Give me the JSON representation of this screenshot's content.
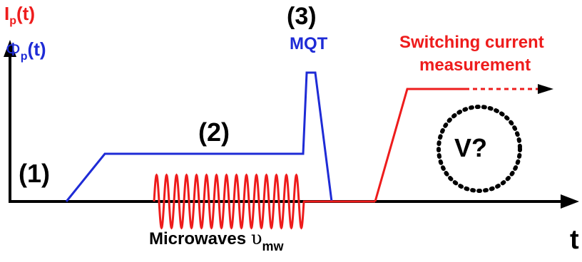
{
  "labels": {
    "ip_main": "I",
    "ip_sub": "p",
    "ip_tail": "(t)",
    "phi_main": "Φ",
    "phi_sub": "p",
    "phi_tail": "(t)",
    "step1": "(1)",
    "step2": "(2)",
    "step3": "(3)",
    "mqt": "MQT",
    "switch_line1": "Switching current",
    "switch_line2": "measurement",
    "voltage": "V?",
    "mw_text": "Microwaves ",
    "mw_symbol": "υ",
    "mw_sub": "mw",
    "t_axis": "t"
  },
  "colors": {
    "current": "#ee1c1c",
    "flux": "#1e2bd6",
    "axis": "#000000"
  }
}
